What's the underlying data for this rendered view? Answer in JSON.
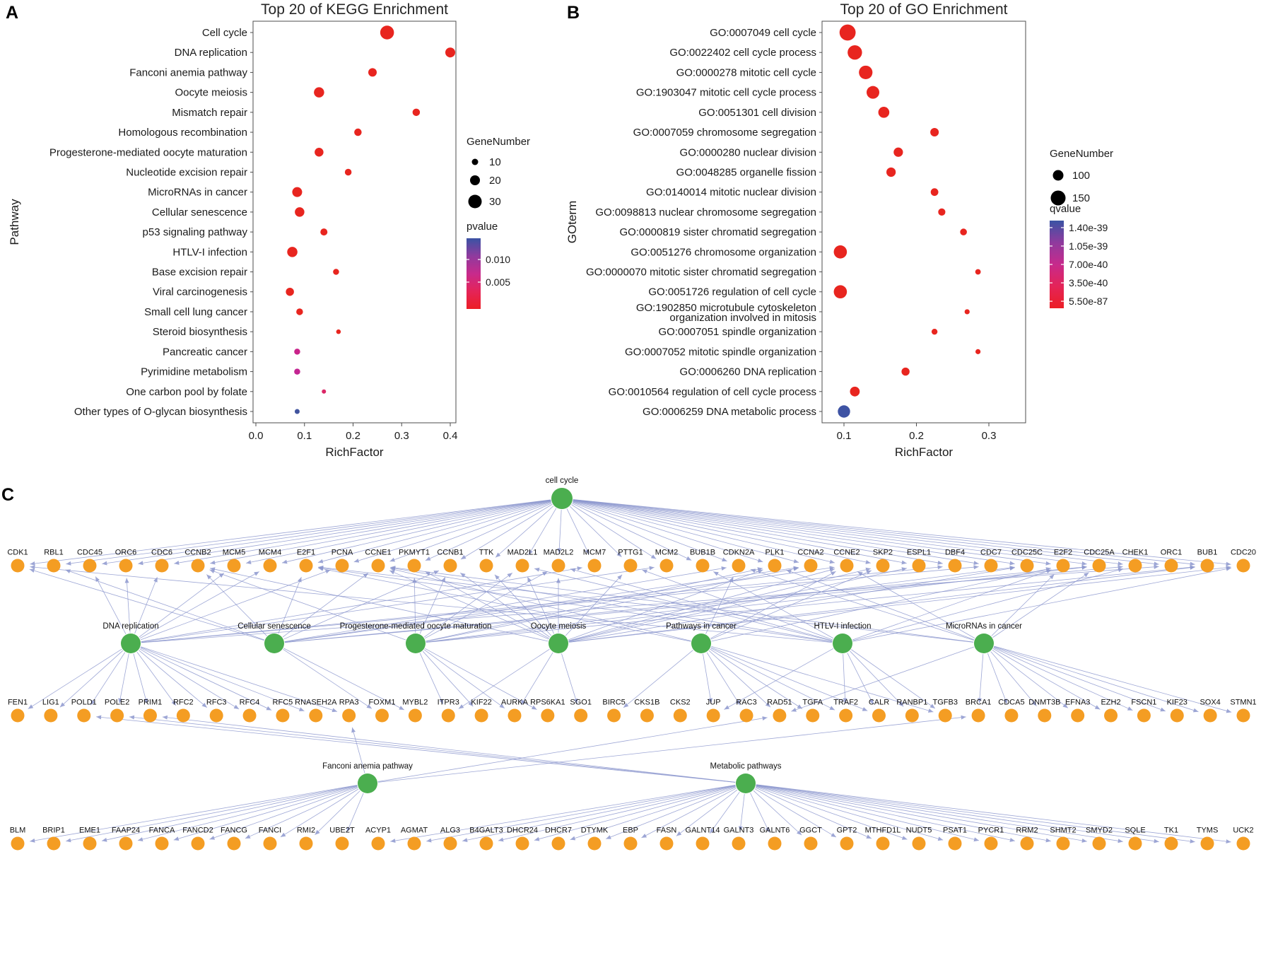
{
  "figure": {
    "panels": {
      "a": {
        "label": "A"
      },
      "b": {
        "label": "B"
      },
      "c": {
        "label": "C"
      }
    }
  },
  "chart_data": [
    {
      "id": "kegg",
      "type": "scatter",
      "title": "Top 20 of KEGG Enrichment",
      "xlabel": "RichFactor",
      "ylabel": "Pathway",
      "xlim": [
        0.0,
        0.42
      ],
      "grid": false,
      "legend_position": "right",
      "xticks": [
        "0.0",
        "0.1",
        "0.2",
        "0.3",
        "0.4"
      ],
      "xtick_values": [
        0.0,
        0.1,
        0.2,
        0.3,
        0.4
      ],
      "size_legend": {
        "title": "GeneNumber",
        "values": [
          10,
          20,
          30
        ]
      },
      "color_legend": {
        "title": "pvalue",
        "labels": [
          "0.010",
          "0.005"
        ],
        "label_pos": [
          0.3,
          0.62
        ],
        "gradient": [
          "#3A53A4",
          "#8F3B9E",
          "#C72A8C",
          "#E42458",
          "#EC1E25"
        ]
      },
      "points": [
        {
          "label": "Cell cycle",
          "x": 0.27,
          "gene_number": 31,
          "color": "#E8251F"
        },
        {
          "label": "DNA replication",
          "x": 0.4,
          "gene_number": 20,
          "color": "#E8251F"
        },
        {
          "label": "Fanconi anemia pathway",
          "x": 0.24,
          "gene_number": 16,
          "color": "#E8251F"
        },
        {
          "label": "Oocyte meiosis",
          "x": 0.13,
          "gene_number": 21,
          "color": "#E8251F"
        },
        {
          "label": "Mismatch repair",
          "x": 0.33,
          "gene_number": 13,
          "color": "#E8251F"
        },
        {
          "label": "Homologous recombination",
          "x": 0.21,
          "gene_number": 13,
          "color": "#E8251F"
        },
        {
          "label": "Progesterone-mediated oocyte maturation",
          "x": 0.13,
          "gene_number": 17,
          "color": "#E8251F"
        },
        {
          "label": "Nucleotide excision repair",
          "x": 0.19,
          "gene_number": 11,
          "color": "#E8251F"
        },
        {
          "label": "MicroRNAs in cancer",
          "x": 0.085,
          "gene_number": 20,
          "color": "#E8251F"
        },
        {
          "label": "Cellular senescence",
          "x": 0.09,
          "gene_number": 19,
          "color": "#E8251F"
        },
        {
          "label": "p53 signaling pathway",
          "x": 0.14,
          "gene_number": 12,
          "color": "#E8251F"
        },
        {
          "label": "HTLV-I infection",
          "x": 0.075,
          "gene_number": 21,
          "color": "#E8251F"
        },
        {
          "label": "Base excision repair",
          "x": 0.165,
          "gene_number": 9,
          "color": "#E8251F"
        },
        {
          "label": "Viral carcinogenesis",
          "x": 0.07,
          "gene_number": 15,
          "color": "#E8251F"
        },
        {
          "label": "Small cell lung cancer",
          "x": 0.09,
          "gene_number": 11,
          "color": "#E8251F"
        },
        {
          "label": "Steroid biosynthesis",
          "x": 0.17,
          "gene_number": 5,
          "color": "#E8251F"
        },
        {
          "label": "Pancreatic cancer",
          "x": 0.085,
          "gene_number": 9,
          "color": "#C9238A"
        },
        {
          "label": "Pyrimidine metabolism",
          "x": 0.085,
          "gene_number": 9,
          "color": "#C32592"
        },
        {
          "label": "One carbon pool by folate",
          "x": 0.14,
          "gene_number": 4,
          "color": "#DB2766"
        },
        {
          "label": "Other types of O-glycan biosynthesis",
          "x": 0.085,
          "gene_number": 6,
          "color": "#41549E"
        }
      ]
    },
    {
      "id": "go",
      "type": "scatter",
      "title": "Top 20 of GO Enrichment",
      "xlabel": "RichFactor",
      "ylabel": "GOterm",
      "xlim": [
        0.07,
        0.35
      ],
      "grid": false,
      "legend_position": "right",
      "xticks": [
        "0.1",
        "0.2",
        "0.3"
      ],
      "xtick_values": [
        0.1,
        0.2,
        0.3
      ],
      "size_legend": {
        "title": "GeneNumber",
        "values": [
          100,
          150
        ]
      },
      "color_legend": {
        "title": "qvalue",
        "labels": [
          "1.40e-39",
          "1.05e-39",
          "7.00e-40",
          "3.50e-40",
          "5.50e-87"
        ],
        "label_pos": [
          0.08,
          0.29,
          0.5,
          0.71,
          0.92
        ],
        "gradient": [
          "#3A53A4",
          "#8F3B9E",
          "#C72A8C",
          "#E42458",
          "#EC1E25"
        ]
      },
      "points": [
        {
          "label": "GO:0007049 cell cycle",
          "x": 0.105,
          "gene_number": 165,
          "color": "#E8251F"
        },
        {
          "label": "GO:0022402 cell cycle process",
          "x": 0.115,
          "gene_number": 145,
          "color": "#E8251F"
        },
        {
          "label": "GO:0000278 mitotic cell cycle",
          "x": 0.13,
          "gene_number": 135,
          "color": "#E8251F"
        },
        {
          "label": "GO:1903047 mitotic cell cycle process",
          "x": 0.14,
          "gene_number": 125,
          "color": "#E8251F"
        },
        {
          "label": "GO:0051301 cell division",
          "x": 0.155,
          "gene_number": 105,
          "color": "#E8251F"
        },
        {
          "label": "GO:0007059 chromosome segregation",
          "x": 0.225,
          "gene_number": 75,
          "color": "#E8251F"
        },
        {
          "label": "GO:0000280 nuclear division",
          "x": 0.175,
          "gene_number": 85,
          "color": "#E8251F"
        },
        {
          "label": "GO:0048285 organelle fission",
          "x": 0.165,
          "gene_number": 85,
          "color": "#E8251F"
        },
        {
          "label": "GO:0140014 mitotic nuclear division",
          "x": 0.225,
          "gene_number": 65,
          "color": "#E8251F"
        },
        {
          "label": "GO:0098813 nuclear chromosome segregation",
          "x": 0.235,
          "gene_number": 60,
          "color": "#E8251F"
        },
        {
          "label": "GO:0000819 sister chromatid segregation",
          "x": 0.265,
          "gene_number": 55,
          "color": "#E8251F"
        },
        {
          "label": "GO:0051276 chromosome organization",
          "x": 0.095,
          "gene_number": 130,
          "color": "#E8251F"
        },
        {
          "label": "GO:0000070 mitotic sister chromatid segregation",
          "x": 0.285,
          "gene_number": 40,
          "color": "#E8251F"
        },
        {
          "label": "GO:0051726 regulation of cell cycle",
          "x": 0.095,
          "gene_number": 130,
          "color": "#E8251F"
        },
        {
          "label": "GO:1902850 microtubule cytoskeleton\norganization involved in mitosis",
          "x": 0.27,
          "gene_number": 35,
          "color": "#E8251F"
        },
        {
          "label": "GO:0007051 spindle organization",
          "x": 0.225,
          "gene_number": 45,
          "color": "#E8251F"
        },
        {
          "label": "GO:0007052 mitotic spindle organization",
          "x": 0.285,
          "gene_number": 35,
          "color": "#E8251F"
        },
        {
          "label": "GO:0006260 DNA replication",
          "x": 0.185,
          "gene_number": 70,
          "color": "#E8251F"
        },
        {
          "label": "GO:0010564 regulation of cell cycle process",
          "x": 0.115,
          "gene_number": 90,
          "color": "#E8251F"
        },
        {
          "label": "GO:0006259 DNA metabolic process",
          "x": 0.1,
          "gene_number": 120,
          "color": "#3E53A4"
        }
      ]
    },
    {
      "id": "network",
      "type": "network",
      "colors": {
        "pathway": "#4BAE4F",
        "gene": "#F49D23",
        "edge": "#8C97CE"
      },
      "hub": "cell cycle",
      "mid_pathways": [
        "DNA replication",
        "Cellular senescence",
        "Progesterone-mediated oocyte maturation",
        "Oocyte meiosis",
        "Pathways in cancer",
        "HTLV-I infection",
        "MicroRNAs in cancer"
      ],
      "bottom_pathways": [
        "Fanconi anemia pathway",
        "Metabolic pathways"
      ],
      "row1_genes": [
        "CDK1",
        "RBL1",
        "CDC45",
        "ORC6",
        "CDC6",
        "CCNB2",
        "MCM5",
        "MCM4",
        "E2F1",
        "PCNA",
        "CCNE1",
        "PKMYT1",
        "CCNB1",
        "TTK",
        "MAD2L1",
        "MAD2L2",
        "MCM7",
        "PTTG1",
        "MCM2",
        "BUB1B",
        "CDKN2A",
        "PLK1",
        "CCNA2",
        "CCNE2",
        "SKP2",
        "ESPL1",
        "DBF4",
        "CDC7",
        "CDC25C",
        "E2F2",
        "CDC25A",
        "CHEK1",
        "ORC1",
        "BUB1",
        "CDC20"
      ],
      "row2_genes": [
        "FEN1",
        "LIG1",
        "POLD1",
        "POLE2",
        "PRIM1",
        "RFC2",
        "RFC3",
        "RFC4",
        "RFC5",
        "RNASEH2A",
        "RPA3",
        "FOXM1",
        "MYBL2",
        "ITPR3",
        "KIF22",
        "AURKA",
        "RPS6KA1",
        "SGO1",
        "BIRC5",
        "CKS1B",
        "CKS2",
        "JUP",
        "RAC3",
        "RAD51",
        "TGFA",
        "TRAF2",
        "CALR",
        "RANBP1",
        "TGFB3",
        "BRCA1",
        "CDCA5",
        "DNMT3B",
        "EFNA3",
        "EZH2",
        "FSCN1",
        "KIF23",
        "SOX4",
        "STMN1"
      ],
      "row3_genes": [
        "BLM",
        "BRIP1",
        "EME1",
        "FAAP24",
        "FANCA",
        "FANCD2",
        "FANCG",
        "FANCI",
        "RMI2",
        "UBE2T",
        "ACYP1",
        "AGMAT",
        "ALG3",
        "B4GALT3",
        "DHCR24",
        "DHCR7",
        "DTYMK",
        "EBP",
        "FASN",
        "GALNT14",
        "GALNT3",
        "GALNT6",
        "GGCT",
        "GPT2",
        "MTHFD1L",
        "NUDT5",
        "PSAT1",
        "PYCR1",
        "RRM2",
        "SHMT2",
        "SMYD2",
        "SQLE",
        "TK1",
        "TYMS",
        "UCK2"
      ],
      "edges": {
        "cell cycle": [
          "CDK1",
          "RBL1",
          "CDC45",
          "ORC6",
          "CDC6",
          "CCNB2",
          "MCM5",
          "MCM4",
          "E2F1",
          "PCNA",
          "CCNE1",
          "PKMYT1",
          "CCNB1",
          "TTK",
          "MAD2L1",
          "MAD2L2",
          "MCM7",
          "PTTG1",
          "MCM2",
          "BUB1B",
          "CDKN2A",
          "PLK1",
          "CCNA2",
          "CCNE2",
          "SKP2",
          "ESPL1",
          "DBF4",
          "CDC7",
          "CDC25C",
          "E2F2",
          "CDC25A",
          "CHEK1",
          "ORC1",
          "BUB1",
          "CDC20"
        ],
        "DNA replication": [
          "MCM5",
          "MCM4",
          "PCNA",
          "MCM7",
          "MCM2",
          "CDC45",
          "CDC6",
          "CDC7",
          "DBF4",
          "ORC6",
          "ORC1",
          "FEN1",
          "LIG1",
          "POLD1",
          "POLE2",
          "PRIM1",
          "RFC2",
          "RFC3",
          "RFC4",
          "RFC5",
          "RNASEH2A",
          "RPA3"
        ],
        "Cellular senescence": [
          "CDK1",
          "RBL1",
          "CCNB2",
          "E2F1",
          "CCNE1",
          "CCNB1",
          "CDKN2A",
          "CCNA2",
          "CCNE2",
          "CHEK1",
          "CDC25A",
          "FOXM1",
          "MYBL2"
        ],
        "Progesterone-mediated oocyte maturation": [
          "CCNB2",
          "PKMYT1",
          "CCNB1",
          "MAD2L1",
          "MAD2L2",
          "PLK1",
          "CCNA2",
          "CDC25C",
          "CDC25A",
          "BUB1",
          "ITPR3",
          "KIF22",
          "AURKA",
          "RPS6KA1"
        ],
        "Oocyte meiosis": [
          "CCNB2",
          "PKMYT1",
          "CCNB1",
          "TTK",
          "MAD2L1",
          "MAD2L2",
          "PTTG1",
          "PLK1",
          "CCNE1",
          "CCNE2",
          "ESPL1",
          "CDC25C",
          "SKP2",
          "BUB1",
          "CDC20",
          "ITPR3",
          "AURKA",
          "SGO1"
        ],
        "Pathways in cancer": [
          "E2F1",
          "E2F2",
          "CCNE1",
          "CCNE2",
          "CDKN2A",
          "SKP2",
          "JUP",
          "RAC3",
          "TGFA",
          "TRAF2",
          "BIRC5",
          "RAD51",
          "TGFB3",
          "CALR"
        ],
        "HTLV-I infection": [
          "CDK1",
          "E2F1",
          "E2F2",
          "CHEK1",
          "CDC20",
          "BUB1B",
          "MAD2L1",
          "MAD2L2",
          "PTTG1",
          "CCNE1",
          "RANBP1",
          "CALR",
          "TRAF2",
          "TGFB3",
          "JUP"
        ],
        "MicroRNAs in cancer": [
          "CCNE1",
          "CCNE2",
          "CDKN2A",
          "CDC25A",
          "E2F1",
          "E2F2",
          "PLK1",
          "BRCA1",
          "CDCA5",
          "DNMT3B",
          "EFNA3",
          "EZH2",
          "FSCN1",
          "KIF23",
          "SOX4",
          "STMN1",
          "RAD51"
        ],
        "Fanconi anemia pathway": [
          "BLM",
          "BRIP1",
          "EME1",
          "FAAP24",
          "FANCA",
          "FANCD2",
          "FANCG",
          "FANCI",
          "RMI2",
          "UBE2T",
          "BRCA1",
          "RAD51",
          "RPA3"
        ],
        "Metabolic pathways": [
          "ACYP1",
          "AGMAT",
          "ALG3",
          "B4GALT3",
          "DHCR24",
          "DHCR7",
          "DTYMK",
          "EBP",
          "FASN",
          "GALNT14",
          "GALNT3",
          "GALNT6",
          "GGCT",
          "GPT2",
          "MTHFD1L",
          "NUDT5",
          "PSAT1",
          "PYCR1",
          "RRM2",
          "SHMT2",
          "SMYD2",
          "SQLE",
          "TK1",
          "TYMS",
          "UCK2",
          "POLD1",
          "POLE2",
          "PRIM1"
        ]
      }
    }
  ]
}
